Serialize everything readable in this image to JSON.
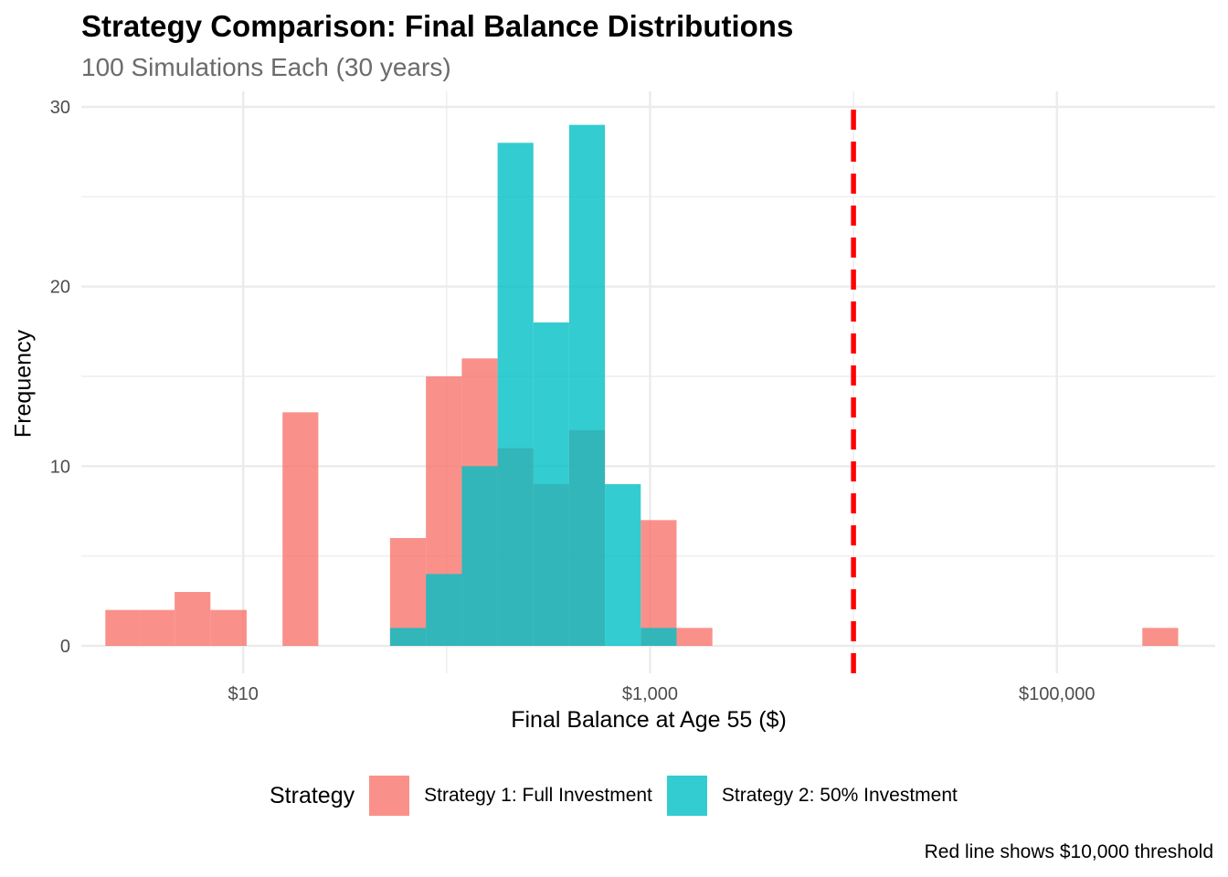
{
  "title": "Strategy Comparison: Final Balance Distributions",
  "subtitle": "100 Simulations Each (30 years)",
  "caption": "Red line shows $10,000 threshold",
  "colors": {
    "strategy1": "#F8766D",
    "strategy2": "#00BFC4",
    "threshold": "#FF0000",
    "grid": "#ebebeb"
  },
  "legend": {
    "title": "Strategy",
    "items": [
      "Strategy 1: Full Investment",
      "Strategy 2: 50% Investment"
    ]
  },
  "chart_data": {
    "type": "bar",
    "subtype": "overlaid histogram",
    "x_scale": "log10",
    "xlabel": "Final Balance at Age 55 ($)",
    "ylabel": "Frequency",
    "xlim": [
      1.6,
      600000
    ],
    "ylim": [
      0,
      30
    ],
    "x_ticks": [
      {
        "value": 10,
        "label": "$10"
      },
      {
        "value": 1000,
        "label": "$1,000"
      },
      {
        "value": 100000,
        "label": "$100,000"
      }
    ],
    "y_ticks": [
      0,
      10,
      20,
      30
    ],
    "grid": true,
    "legend_position": "bottom",
    "bin_edges": [
      2.1,
      3.1,
      4.6,
      6.9,
      10.4,
      15.6,
      23.4,
      35.1,
      52.7,
      79.1,
      118.7,
      178,
      267,
      400,
      600,
      900,
      1350,
      2025,
      3040,
      4560,
      6840,
      10260,
      15390,
      23090,
      34630,
      51950,
      77920,
      116900,
      175300,
      263000,
      394500
    ],
    "series": [
      {
        "name": "Strategy 1: Full Investment",
        "counts": [
          2,
          2,
          3,
          2,
          0,
          13,
          0,
          0,
          6,
          15,
          16,
          11,
          9,
          12,
          0,
          7,
          1,
          0,
          0,
          0,
          0,
          0,
          0,
          0,
          0,
          0,
          0,
          0,
          0,
          1
        ]
      },
      {
        "name": "Strategy 2: 50% Investment",
        "counts": [
          0,
          0,
          0,
          0,
          0,
          0,
          0,
          0,
          1,
          4,
          10,
          28,
          18,
          29,
          9,
          1,
          0,
          0,
          0,
          0,
          0,
          0,
          0,
          0,
          0,
          0,
          0,
          0,
          0,
          0
        ]
      }
    ],
    "threshold": {
      "value": 10000,
      "style": "dashed"
    }
  }
}
